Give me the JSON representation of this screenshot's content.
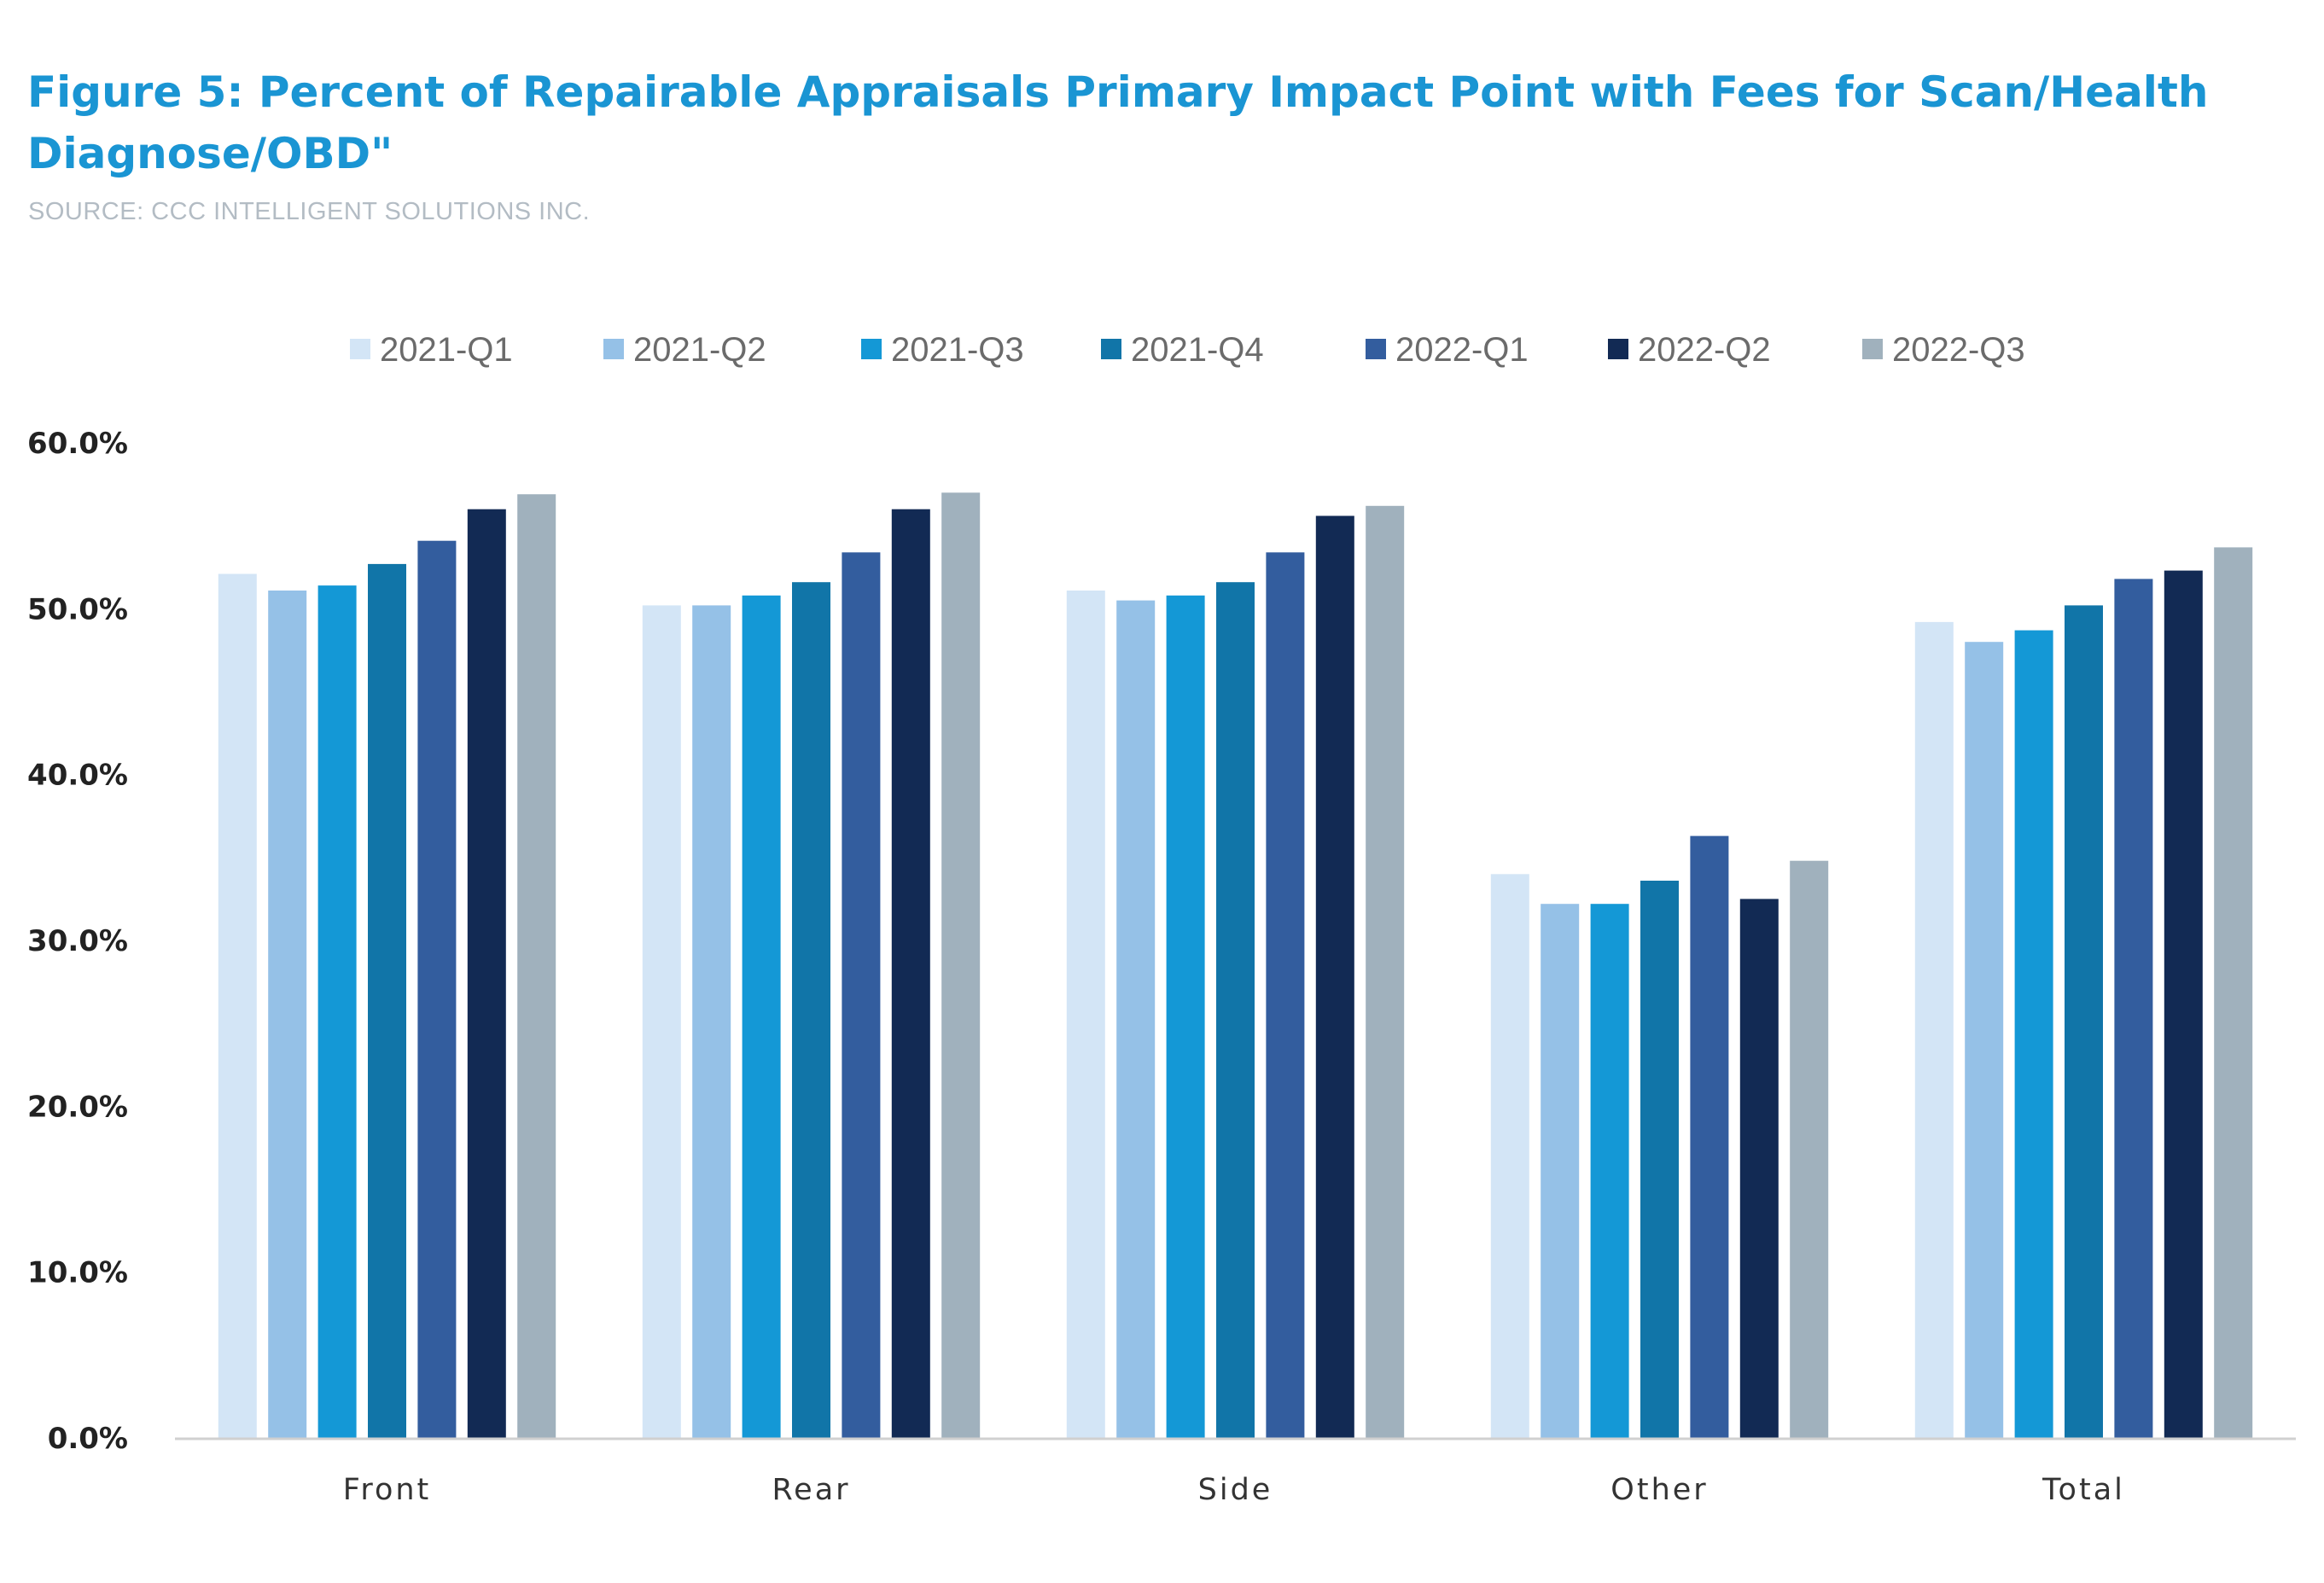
{
  "chart_data": {
    "type": "bar",
    "title": "Figure 5: Percent of Repairable Appraisals Primary Impact Point with Fees for Scan/Health Diagnose/OBD\"",
    "subtitle": "SOURCE: CCC INTELLIGENT SOLUTIONS INC.",
    "xlabel": "",
    "ylabel": "",
    "ylim": [
      0,
      60
    ],
    "yticks": [
      "0.0%",
      "10.0%",
      "20.0%",
      "30.0%",
      "40.0%",
      "50.0%",
      "60.0%"
    ],
    "grid": false,
    "legend_position": "top",
    "categories": [
      "Front",
      "Rear",
      "Side",
      "Other",
      "Total"
    ],
    "series": [
      {
        "name": "2021-Q1",
        "color": "#d3e5f6",
        "values": [
          52.1,
          50.2,
          51.1,
          34.0,
          49.2
        ]
      },
      {
        "name": "2021-Q2",
        "color": "#95c1e7",
        "values": [
          51.1,
          50.2,
          50.5,
          32.2,
          48.0
        ]
      },
      {
        "name": "2021-Q3",
        "color": "#1498d6",
        "values": [
          51.4,
          50.8,
          50.8,
          32.2,
          48.7
        ]
      },
      {
        "name": "2021-Q4",
        "color": "#1175a8",
        "values": [
          52.7,
          51.6,
          51.6,
          33.6,
          50.2
        ]
      },
      {
        "name": "2022-Q1",
        "color": "#335d9e",
        "values": [
          54.1,
          53.4,
          53.4,
          36.3,
          51.8
        ]
      },
      {
        "name": "2022-Q2",
        "color": "#122a54",
        "values": [
          56.0,
          56.0,
          55.6,
          32.5,
          52.3
        ]
      },
      {
        "name": "2022-Q3",
        "color": "#a0b1bd",
        "values": [
          56.9,
          57.0,
          56.2,
          34.8,
          53.7
        ]
      }
    ]
  }
}
